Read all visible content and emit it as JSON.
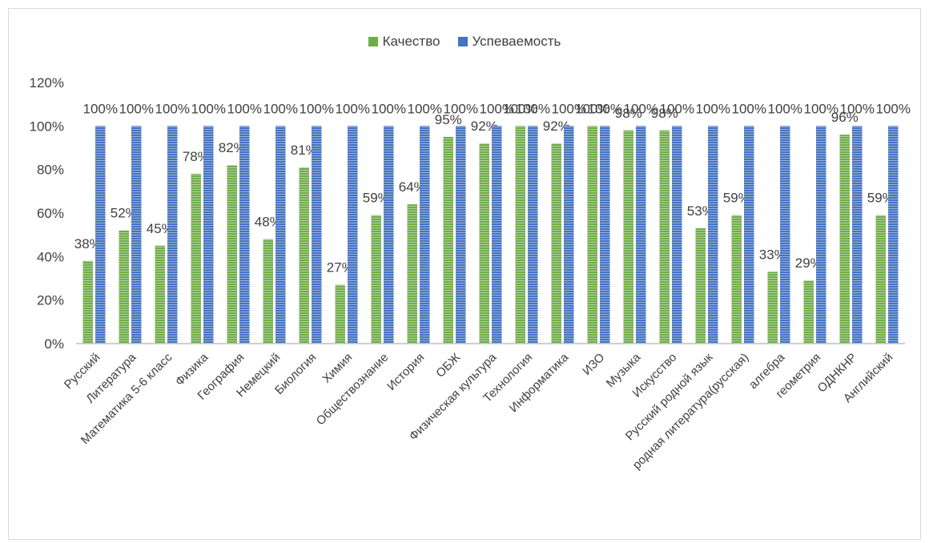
{
  "chart_data": {
    "type": "bar",
    "categories": [
      "Русский",
      "Литература",
      "Математика 5-6 класс",
      "Физика",
      "География",
      "Немецкий",
      "Биология",
      "Химия",
      "Обществознание",
      "История",
      "ОБЖ",
      "Физическая культура",
      "Технология",
      "Информатика",
      "ИЗО",
      "Музыка",
      "Искусство",
      "Русский родной язык",
      "родная литература(русская)",
      "алгебра",
      "геометрия",
      "ОДНКНР",
      "Английский"
    ],
    "series": [
      {
        "name": "Качество",
        "color": "#70ad47",
        "values": [
          38,
          52,
          45,
          78,
          82,
          48,
          81,
          27,
          59,
          64,
          95,
          92,
          100,
          92,
          100,
          98,
          98,
          53,
          59,
          33,
          29,
          96,
          59
        ],
        "labels": [
          "38%",
          "52%",
          "45%",
          "78%",
          "82%",
          "48%",
          "81%",
          "27%",
          "59%",
          "64%",
          "95%",
          "92%",
          "100%",
          "92%",
          "100%",
          "98%",
          "98%",
          "53%",
          "59%",
          "33%",
          "29%",
          "96%",
          "59%"
        ]
      },
      {
        "name": "Успеваемость",
        "color": "#4472c4",
        "values": [
          100,
          100,
          100,
          100,
          100,
          100,
          100,
          100,
          100,
          100,
          100,
          100,
          100,
          100,
          100,
          100,
          100,
          100,
          100,
          100,
          100,
          100,
          100
        ],
        "labels": [
          "100%",
          "100%",
          "100%",
          "100%",
          "100%",
          "100%",
          "100%",
          "100%",
          "100%",
          "100%",
          "100%",
          "100%",
          "100%",
          "100%",
          "100%",
          "100%",
          "100%",
          "100%",
          "100%",
          "100%",
          "100%",
          "100%",
          "100%"
        ]
      }
    ],
    "yticks": [
      "0%",
      "20%",
      "40%",
      "60%",
      "80%",
      "100%",
      "120%"
    ],
    "ylim": [
      0,
      120
    ],
    "grid": false,
    "legend_position": "top"
  }
}
